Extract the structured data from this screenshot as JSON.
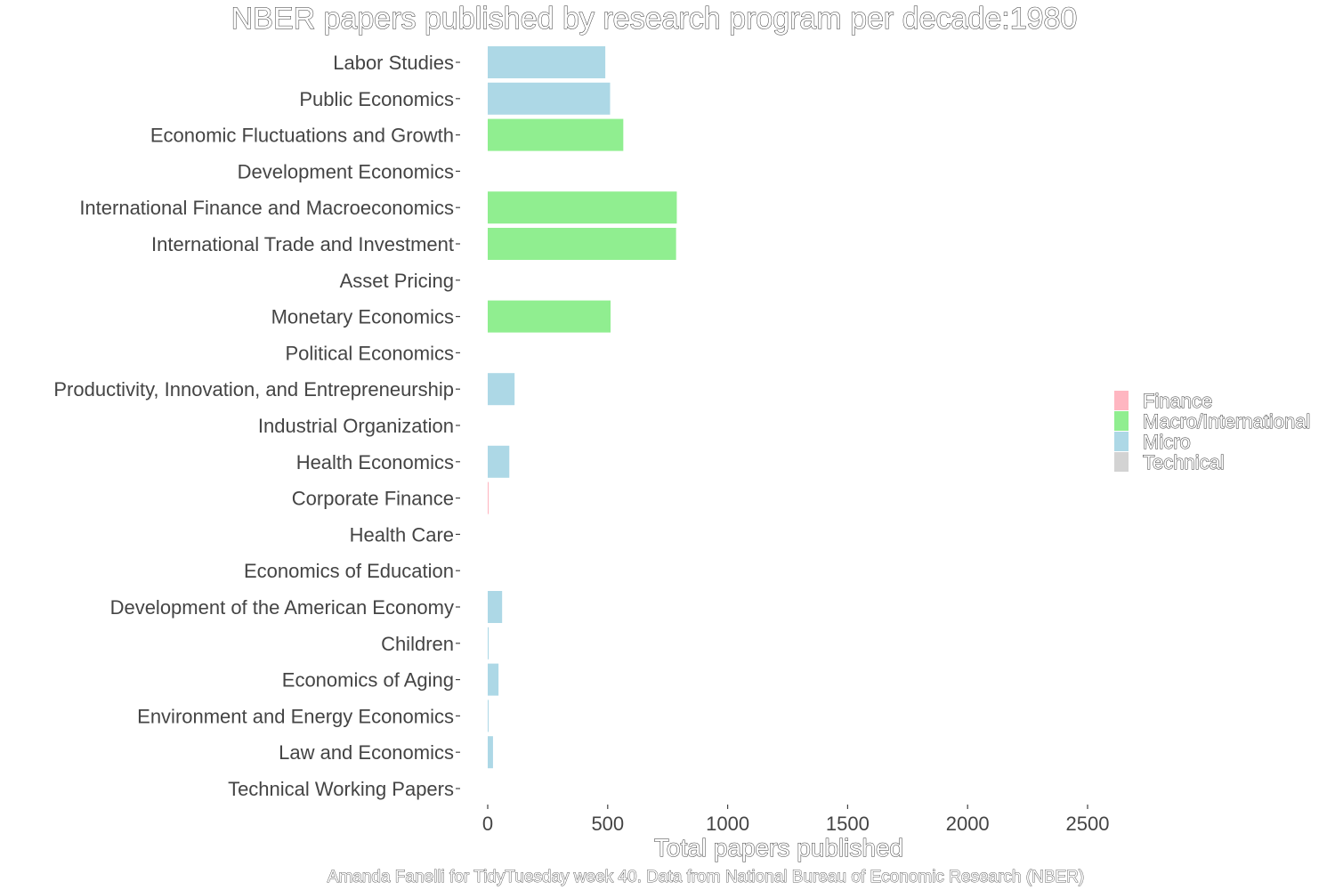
{
  "chart_data": {
    "type": "bar",
    "orientation": "horizontal",
    "title": "NBER papers published by research program per decade:1980",
    "xlabel": "Total papers published",
    "caption": "Amanda Fanelli for TidyTuesday week 40. Data from National Bureau of Economic Research (NBER)",
    "xlim": [
      0,
      2600
    ],
    "xticks": [
      "0",
      "500",
      "1000",
      "1500",
      "2000",
      "2500"
    ],
    "xtick_values": [
      0,
      500,
      1000,
      1500,
      2000,
      2500
    ],
    "grid": false,
    "legend_position": "right",
    "legend": [
      {
        "name": "Finance",
        "color": "#FFB6C1"
      },
      {
        "name": "Macro/International",
        "color": "#90EE90"
      },
      {
        "name": "Micro",
        "color": "#ADD8E6"
      },
      {
        "name": "Technical",
        "color": "#D3D3D3"
      }
    ],
    "bars": [
      {
        "label": "Labor Studies",
        "value": 490,
        "group": "Micro"
      },
      {
        "label": "Public Economics",
        "value": 510,
        "group": "Micro"
      },
      {
        "label": "Economic Fluctuations and Growth",
        "value": 565,
        "group": "Macro/International"
      },
      {
        "label": "Development Economics",
        "value": 0,
        "group": "Micro"
      },
      {
        "label": "International Finance and Macroeconomics",
        "value": 788,
        "group": "Macro/International"
      },
      {
        "label": "International Trade and Investment",
        "value": 785,
        "group": "Macro/International"
      },
      {
        "label": "Asset Pricing",
        "value": 0,
        "group": "Finance"
      },
      {
        "label": "Monetary Economics",
        "value": 512,
        "group": "Macro/International"
      },
      {
        "label": "Political Economics",
        "value": 0,
        "group": "Micro"
      },
      {
        "label": "Productivity, Innovation, and Entrepreneurship",
        "value": 112,
        "group": "Micro"
      },
      {
        "label": "Industrial Organization",
        "value": 0,
        "group": "Micro"
      },
      {
        "label": "Health Economics",
        "value": 90,
        "group": "Micro"
      },
      {
        "label": "Corporate Finance",
        "value": 4,
        "group": "Finance"
      },
      {
        "label": "Health Care",
        "value": 0,
        "group": "Micro"
      },
      {
        "label": "Economics of Education",
        "value": 0,
        "group": "Micro"
      },
      {
        "label": "Development of the American Economy",
        "value": 60,
        "group": "Micro"
      },
      {
        "label": "Children",
        "value": 4,
        "group": "Micro"
      },
      {
        "label": "Economics of Aging",
        "value": 45,
        "group": "Micro"
      },
      {
        "label": "Environment and Energy Economics",
        "value": 3,
        "group": "Micro"
      },
      {
        "label": "Law and Economics",
        "value": 22,
        "group": "Micro"
      },
      {
        "label": "Technical Working Papers",
        "value": 0,
        "group": "Technical"
      }
    ]
  }
}
